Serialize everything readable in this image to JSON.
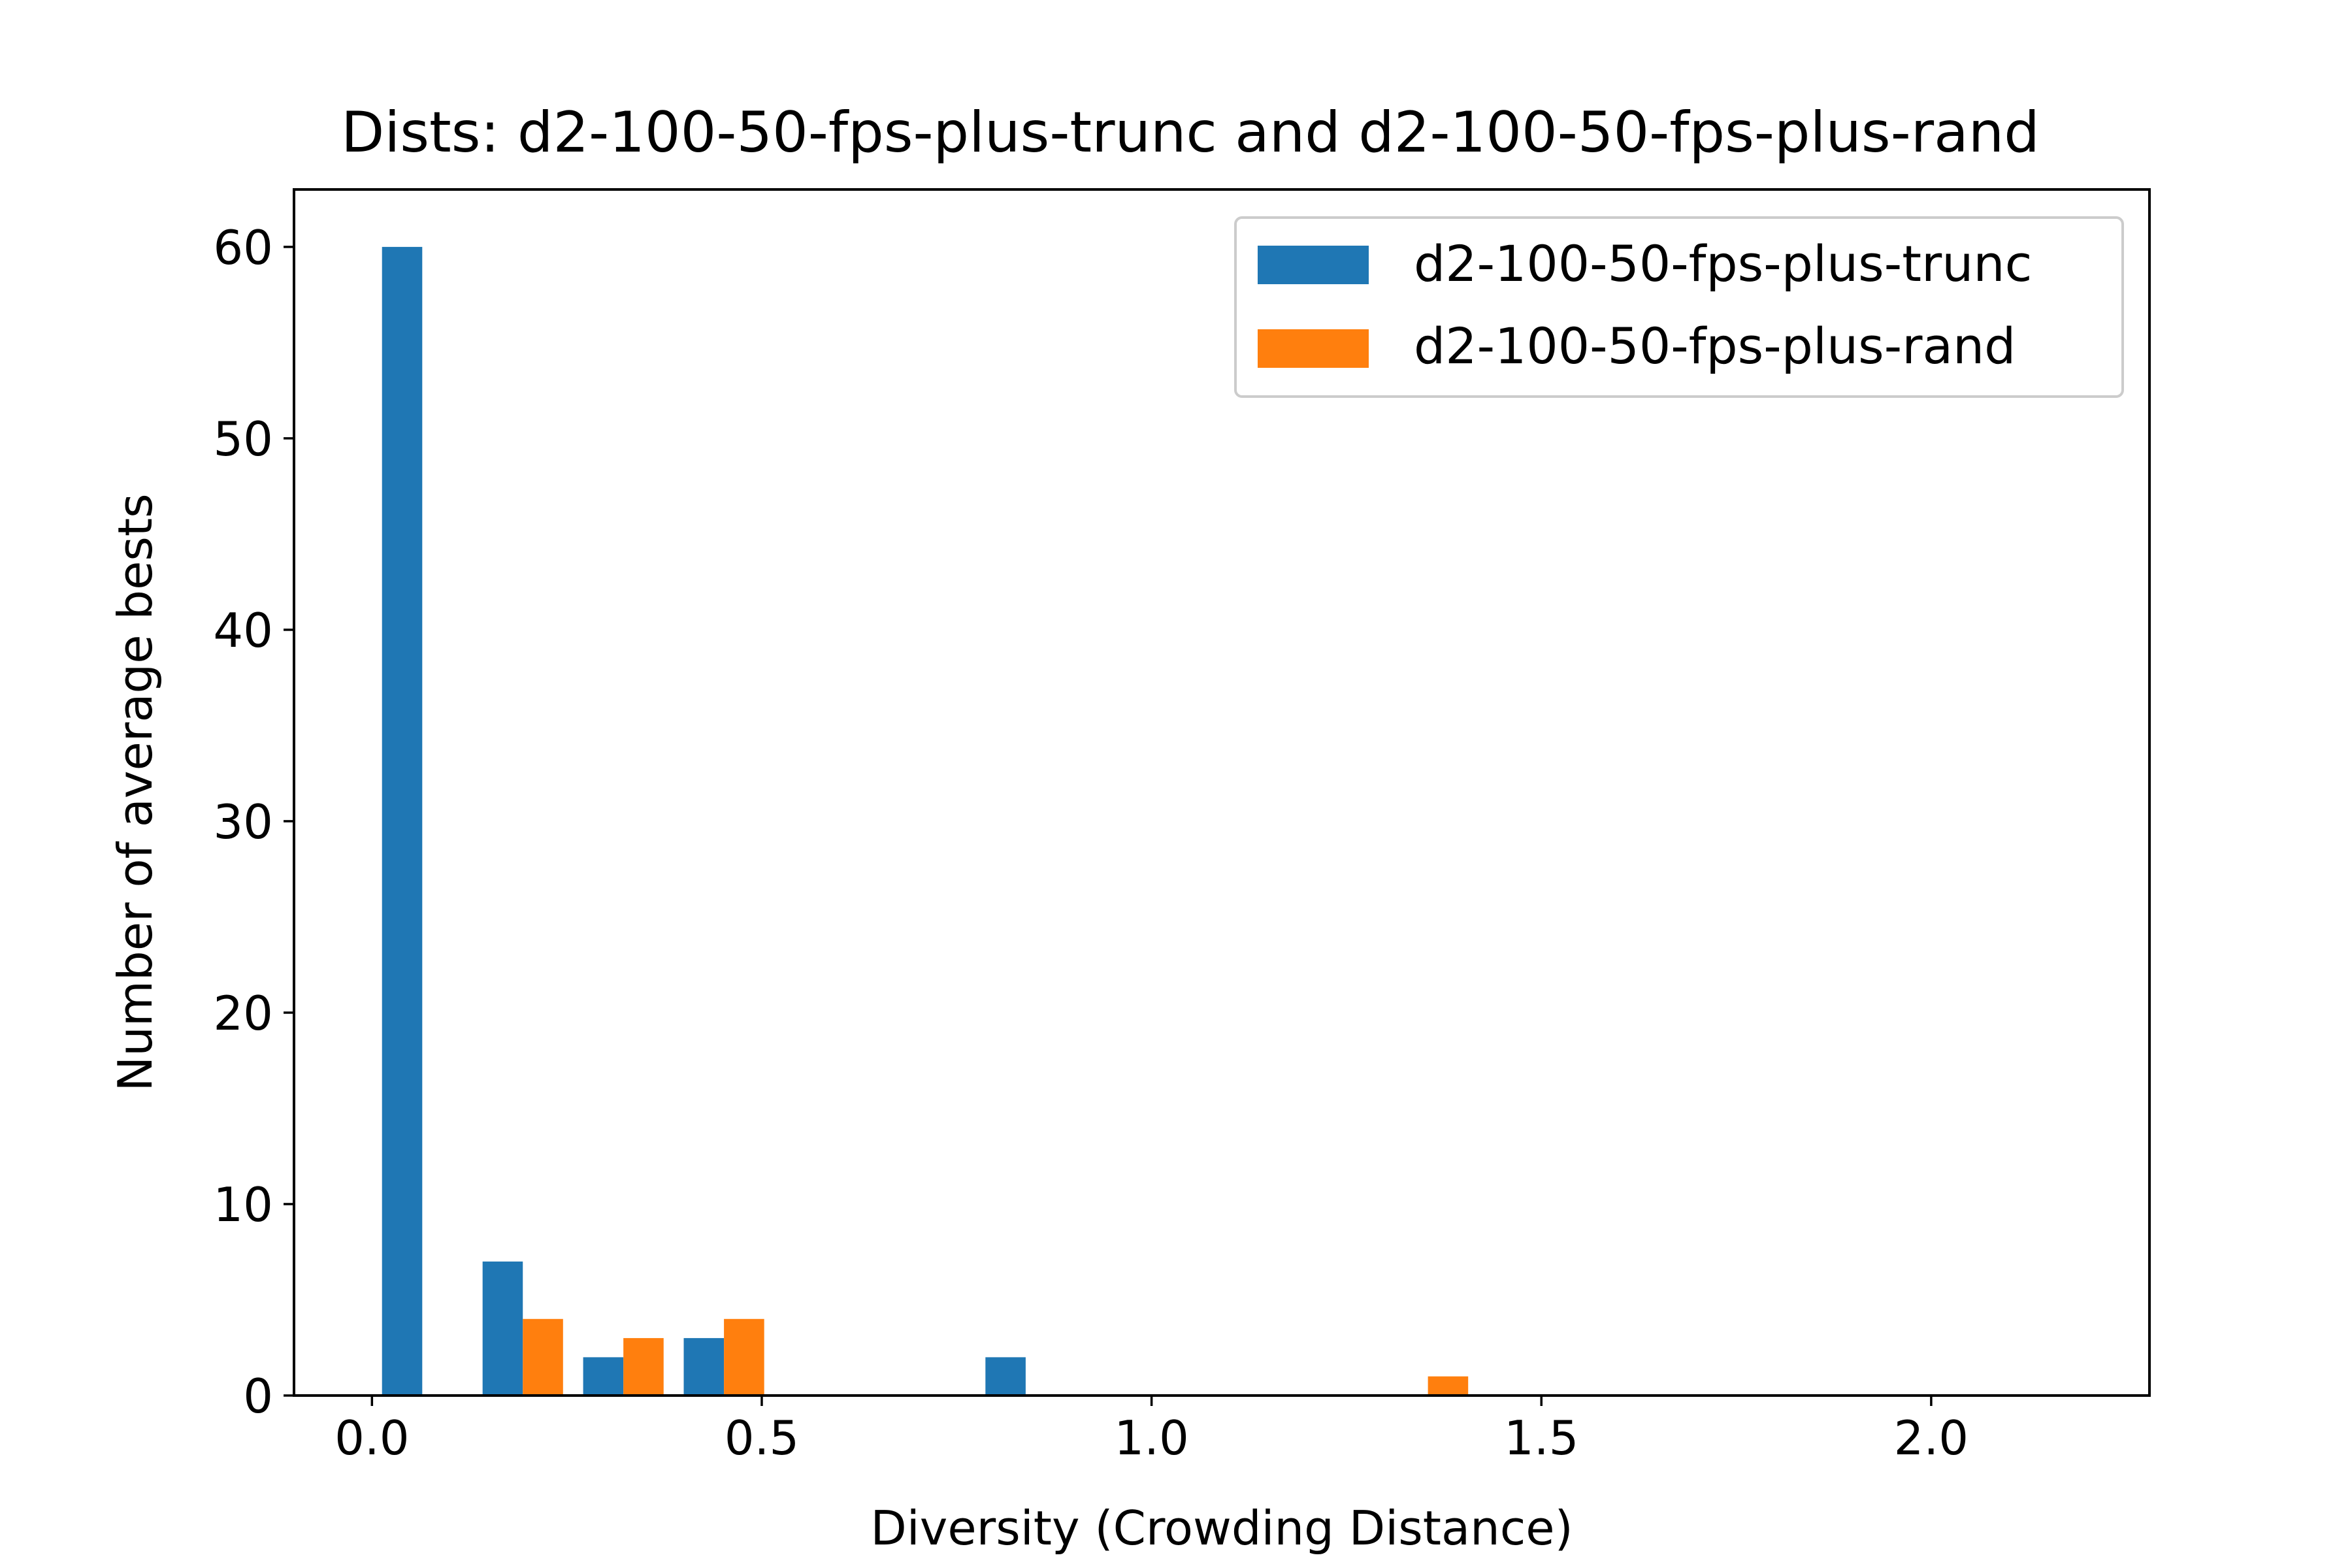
{
  "chart_data": {
    "type": "bar",
    "title": "Dists: d2-100-50-fps-plus-trunc and d2-100-50-fps-plus-rand",
    "xlabel": "Diversity (Crowding Distance)",
    "ylabel": "Number of average bests",
    "xlim": [
      -0.1,
      2.28
    ],
    "ylim": [
      0,
      63
    ],
    "xticks": [
      0.0,
      0.5,
      1.0,
      1.5,
      2.0
    ],
    "xtick_labels": [
      "0.0",
      "0.5",
      "1.0",
      "1.5",
      "2.0"
    ],
    "yticks": [
      0,
      10,
      20,
      30,
      40,
      50,
      60
    ],
    "ytick_labels": [
      "0",
      "10",
      "20",
      "30",
      "40",
      "50",
      "60"
    ],
    "bin_edges": [
      0.0,
      0.129,
      0.258,
      0.387,
      0.516,
      0.645,
      0.774,
      0.903,
      1.032,
      1.161,
      1.29,
      1.419,
      1.548,
      1.677,
      1.806,
      1.935,
      2.064,
      2.193
    ],
    "bar_fraction": 0.4,
    "series": [
      {
        "name": "d2-100-50-fps-plus-trunc",
        "color": "#1f77b4",
        "values": [
          60,
          7,
          2,
          3,
          0,
          0,
          2,
          0,
          0,
          0,
          0,
          0,
          0,
          0,
          0,
          0,
          0
        ]
      },
      {
        "name": "d2-100-50-fps-plus-rand",
        "color": "#ff7f0e",
        "values": [
          0,
          4,
          3,
          4,
          0,
          0,
          0,
          0,
          0,
          0,
          1,
          0,
          0,
          0,
          0,
          0,
          0
        ]
      }
    ],
    "legend_position": "top-right",
    "grid": false
  }
}
